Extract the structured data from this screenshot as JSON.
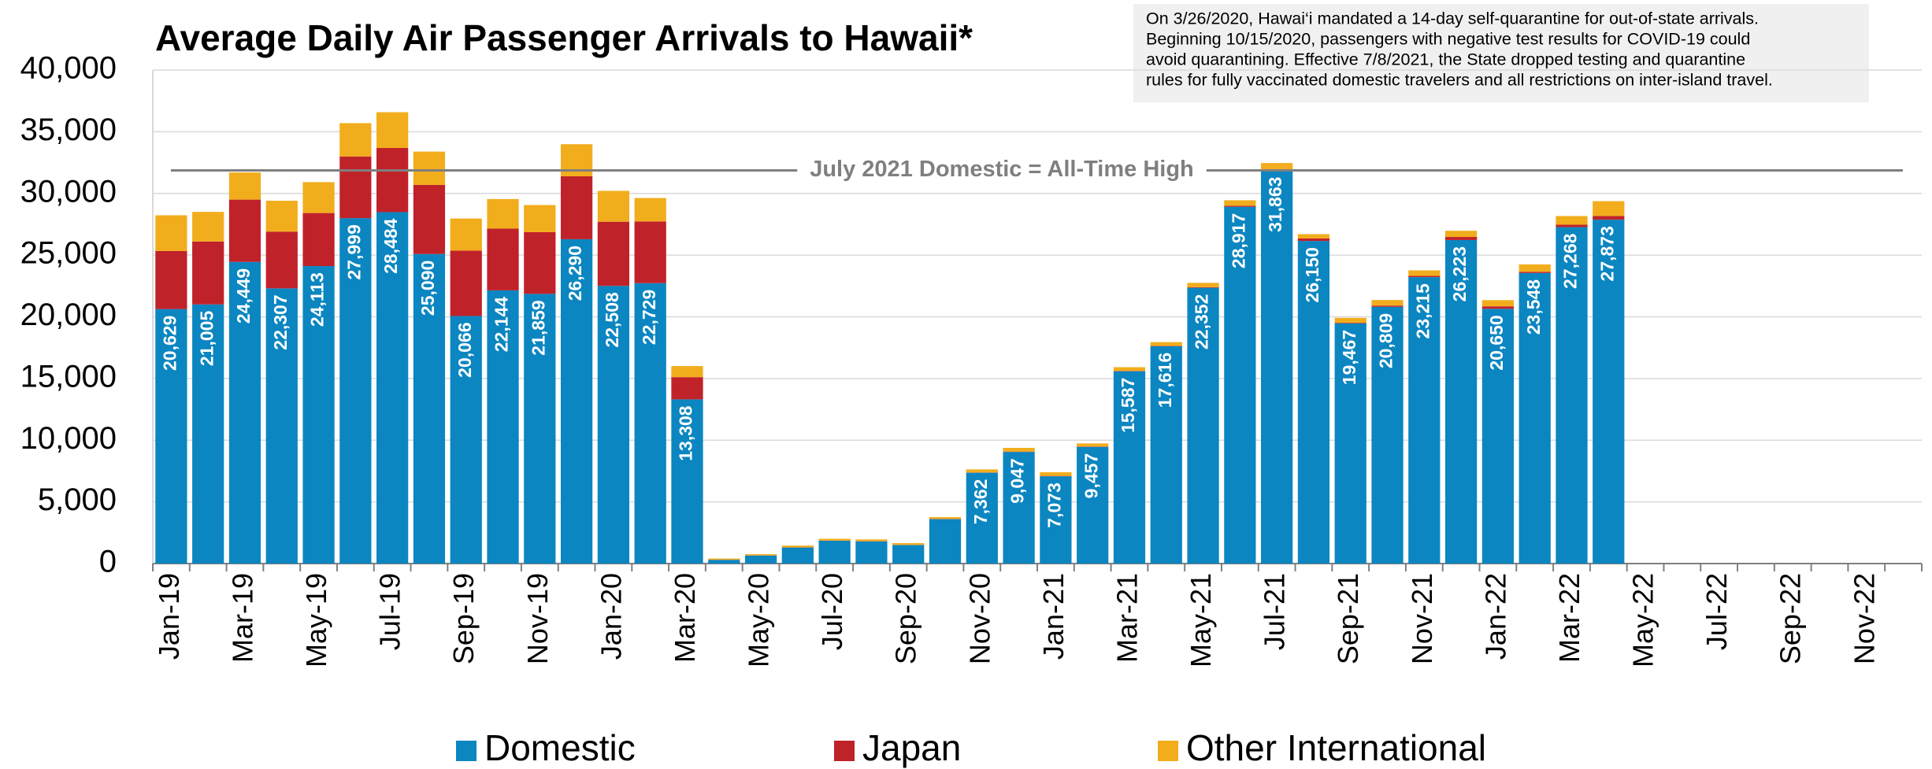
{
  "chart_data": {
    "type": "stacked_bar",
    "title": "Average Daily Air Passenger Arrivals to Hawaii*",
    "annotation": [
      "On 3/26/2020, Hawai‘i mandated a 14-day self-quarantine for out-of-state arrivals.",
      "Beginning 10/15/2020, passengers with negative test results for COVID-19 could",
      "avoid quarantining. Effective 7/8/2021, the State dropped testing and quarantine",
      "rules for fully vaccinated domestic travelers and all restrictions on inter-island travel."
    ],
    "reference_line": {
      "value": 31863,
      "label": "July 2021 Domestic = All-Time High",
      "color": "#7f7f7f"
    },
    "categories": [
      "Jan-19",
      null,
      "Mar-19",
      null,
      "May-19",
      null,
      "Jul-19",
      null,
      "Sep-19",
      null,
      "Nov-19",
      null,
      "Jan-20",
      null,
      "Mar-20",
      null,
      "May-20",
      null,
      "Jul-20",
      null,
      "Sep-20",
      null,
      "Nov-20",
      null,
      "Jan-21",
      null,
      "Mar-21",
      null,
      "May-21",
      null,
      "Jul-21",
      null,
      "Sep-21",
      null,
      "Nov-21",
      null,
      "Jan-22",
      null,
      "Mar-22",
      null,
      "May-22",
      null,
      "Jul-22",
      null,
      "Sep-22",
      null,
      "Nov-22",
      null
    ],
    "series": [
      {
        "name": "Domestic",
        "color": "#0b86c1",
        "values": [
          20629,
          21005,
          24449,
          22307,
          24113,
          27999,
          28484,
          25090,
          20066,
          22144,
          21859,
          26290,
          22508,
          22729,
          13308,
          300,
          650,
          1300,
          1850,
          1800,
          1500,
          3600,
          7362,
          9047,
          7073,
          9457,
          15587,
          17616,
          22352,
          28917,
          31863,
          26150,
          19467,
          20809,
          23215,
          26223,
          20650,
          23548,
          27268,
          27873,
          null,
          null,
          null,
          null,
          null,
          null,
          null,
          null
        ],
        "value_labels": [
          "20,629",
          "21,005",
          "24,449",
          "22,307",
          "24,113",
          "27,999",
          "28,484",
          "25,090",
          "20,066",
          "22,144",
          "21,859",
          "26,290",
          "22,508",
          "22,729",
          "13,308",
          null,
          null,
          null,
          null,
          null,
          null,
          null,
          "7,362",
          "9,047",
          "7,073",
          "9,457",
          "15,587",
          "17,616",
          "22,352",
          "28,917",
          "31,863",
          "26,150",
          "19,467",
          "20,809",
          "23,215",
          "26,223",
          "20,650",
          "23,548",
          "27,268",
          "27,873",
          null,
          null,
          null,
          null,
          null,
          null,
          null,
          null
        ]
      },
      {
        "name": "Japan",
        "color": "#c0222a",
        "values": [
          4700,
          5100,
          5050,
          4600,
          4300,
          5000,
          5200,
          5600,
          5300,
          5000,
          5000,
          5100,
          5200,
          5000,
          1800,
          10,
          10,
          10,
          10,
          10,
          10,
          20,
          20,
          30,
          30,
          30,
          30,
          30,
          50,
          80,
          100,
          200,
          50,
          100,
          100,
          250,
          200,
          100,
          200,
          300,
          null,
          null,
          null,
          null,
          null,
          null,
          null,
          null
        ]
      },
      {
        "name": "Other International",
        "color": "#f2ad1d",
        "values": [
          2900,
          2400,
          2200,
          2500,
          2500,
          2700,
          2900,
          2700,
          2600,
          2400,
          2200,
          2600,
          2500,
          1900,
          900,
          100,
          100,
          150,
          150,
          150,
          150,
          150,
          250,
          300,
          300,
          250,
          300,
          300,
          350,
          450,
          500,
          350,
          400,
          450,
          450,
          500,
          500,
          600,
          700,
          1200,
          null,
          null,
          null,
          null,
          null,
          null,
          null,
          null
        ]
      }
    ],
    "ylim": [
      0,
      40000
    ],
    "yticks": [
      0,
      {
        "value": 5000,
        "label": "5,000"
      },
      {
        "value": 10000,
        "label": "10,000"
      },
      {
        "value": 15000,
        "label": "15,000"
      },
      {
        "value": 20000,
        "label": "20,000"
      },
      {
        "value": 25000,
        "label": "25,000"
      },
      {
        "value": 30000,
        "label": "30,000"
      },
      {
        "value": 35000,
        "label": "35,000"
      },
      {
        "value": 40000,
        "label": "40,000"
      }
    ],
    "grid": true,
    "legend": "bottom"
  }
}
